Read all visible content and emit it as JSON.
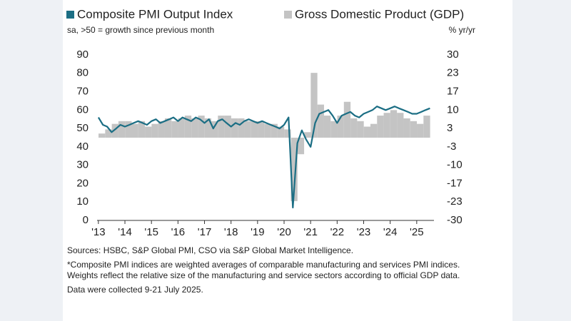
{
  "chart_data": {
    "type": "line_bar",
    "y_label": "sa, >50 = growth since previous month",
    "y2_label": "% yr/yr",
    "xlim": [
      2012.95,
      2025.65
    ],
    "xticks": [
      {
        "value": 2013,
        "label": "'13"
      },
      {
        "value": 2014,
        "label": "'14"
      },
      {
        "value": 2015,
        "label": "'15"
      },
      {
        "value": 2016,
        "label": "'16"
      },
      {
        "value": 2017,
        "label": "'17"
      },
      {
        "value": 2018,
        "label": "'18"
      },
      {
        "value": 2019,
        "label": "'19"
      },
      {
        "value": 2020,
        "label": "'20"
      },
      {
        "value": 2021,
        "label": "'21"
      },
      {
        "value": 2022,
        "label": "'22"
      },
      {
        "value": 2023,
        "label": "'23"
      },
      {
        "value": 2024,
        "label": "'24"
      },
      {
        "value": 2025,
        "label": "'25"
      }
    ],
    "ylim": [
      0,
      90
    ],
    "yticks": [
      0,
      10,
      20,
      30,
      40,
      50,
      60,
      70,
      80,
      90
    ],
    "y2lim": [
      -30,
      30
    ],
    "y2ticks": [
      {
        "value": -30,
        "label": "-30"
      },
      {
        "value": -23.333,
        "label": "-23"
      },
      {
        "value": -16.667,
        "label": "-17"
      },
      {
        "value": -10,
        "label": "-10"
      },
      {
        "value": -3.333,
        "label": "-3"
      },
      {
        "value": 3.333,
        "label": "3"
      },
      {
        "value": 10,
        "label": "10"
      },
      {
        "value": 16.667,
        "label": "17"
      },
      {
        "value": 23.333,
        "label": "23"
      },
      {
        "value": 30,
        "label": "30"
      }
    ],
    "series": [
      {
        "name": "Gross Domestic Product (GDP)",
        "kind": "bar",
        "axis": "y2",
        "color": "#c4c4c4",
        "x": [
          2013.13,
          2013.38,
          2013.63,
          2013.88,
          2014.13,
          2014.38,
          2014.63,
          2014.88,
          2015.13,
          2015.38,
          2015.63,
          2015.88,
          2016.13,
          2016.38,
          2016.63,
          2016.88,
          2017.13,
          2017.38,
          2017.63,
          2017.88,
          2018.13,
          2018.38,
          2018.63,
          2018.88,
          2019.13,
          2019.38,
          2019.63,
          2019.88,
          2020.13,
          2020.38,
          2020.63,
          2020.88,
          2021.13,
          2021.38,
          2021.63,
          2021.88,
          2022.13,
          2022.38,
          2022.63,
          2022.88,
          2023.13,
          2023.38,
          2023.63,
          2023.88,
          2024.13,
          2024.38,
          2024.63,
          2024.88,
          2025.13,
          2025.38
        ],
        "values": [
          1.5,
          3,
          5,
          6,
          6,
          5,
          6,
          4,
          5,
          6,
          7,
          6,
          7,
          8,
          7,
          8,
          7,
          6,
          8,
          8,
          7,
          7,
          6,
          6,
          6,
          5,
          5,
          4,
          3,
          -23,
          -6,
          2,
          23.5,
          12,
          8,
          6,
          8,
          13,
          7,
          6,
          4,
          5,
          8,
          9,
          10,
          9,
          7,
          6,
          5,
          8
        ]
      },
      {
        "name": "Composite PMI Output Index",
        "kind": "line",
        "color": "#1b6e84",
        "x": [
          2013,
          2013.17,
          2013.33,
          2013.5,
          2013.67,
          2013.83,
          2014,
          2014.17,
          2014.33,
          2014.5,
          2014.67,
          2014.83,
          2015,
          2015.17,
          2015.33,
          2015.5,
          2015.67,
          2015.83,
          2016,
          2016.17,
          2016.33,
          2016.5,
          2016.67,
          2016.83,
          2017,
          2017.17,
          2017.33,
          2017.5,
          2017.67,
          2017.83,
          2018,
          2018.17,
          2018.33,
          2018.5,
          2018.67,
          2018.83,
          2019,
          2019.17,
          2019.33,
          2019.5,
          2019.67,
          2019.83,
          2020,
          2020.17,
          2020.33,
          2020.5,
          2020.67,
          2020.83,
          2021,
          2021.17,
          2021.33,
          2021.5,
          2021.67,
          2021.83,
          2022,
          2022.17,
          2022.33,
          2022.5,
          2022.67,
          2022.83,
          2023,
          2023.17,
          2023.33,
          2023.5,
          2023.67,
          2023.83,
          2024,
          2024.17,
          2024.33,
          2024.5,
          2024.67,
          2024.83,
          2025,
          2025.17,
          2025.33,
          2025.5
        ],
        "values": [
          56,
          52,
          51,
          48,
          50,
          52,
          51,
          52,
          53,
          54,
          53,
          52,
          54,
          55,
          53,
          54,
          55,
          56,
          54,
          56,
          55,
          54,
          56,
          55,
          53,
          55,
          50,
          54,
          55,
          53,
          51,
          53,
          52,
          54,
          55,
          54,
          53,
          54,
          53,
          52,
          51,
          50,
          52,
          56,
          7,
          42,
          49,
          44,
          40,
          53,
          58,
          59,
          60,
          57,
          53,
          57,
          58,
          59,
          57,
          56,
          58,
          59,
          60,
          62,
          61,
          60,
          61,
          62,
          61,
          60,
          59,
          58,
          58,
          59,
          60,
          61
        ]
      }
    ],
    "footnotes": [
      "Sources: HSBC, S&P Global PMI, CSO via S&P Global Market Intelligence.",
      "*Composite PMI indices are weighted averages of comparable manufacturing and services PMI indices. Weights reflect the relative size of the manufacturing and service sectors according to official GDP data.",
      "Data were collected 9-21 July 2025."
    ]
  }
}
